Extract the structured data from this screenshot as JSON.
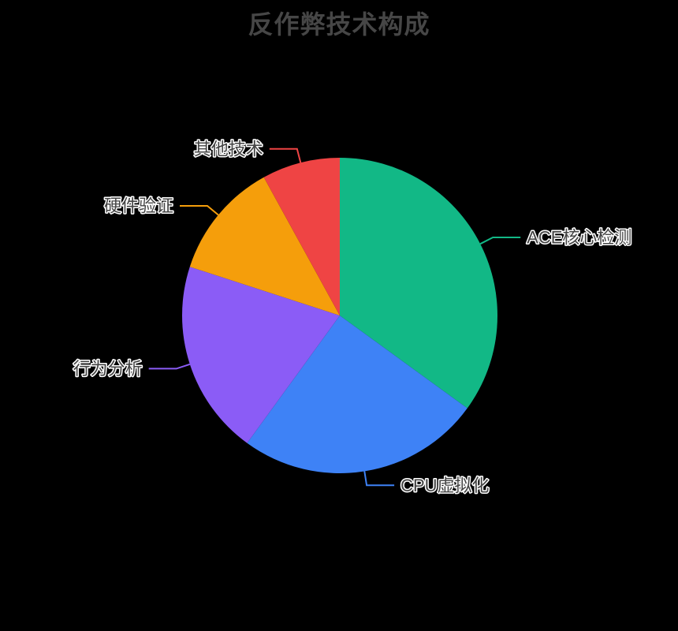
{
  "page": {
    "background_color": "#000000"
  },
  "chart_data": {
    "type": "pie",
    "title": "反作弊技术构成",
    "title_color": "#464646",
    "label_color": "#444444",
    "label_outline_color": "#ffffff",
    "legend_position": "none",
    "start_angle_deg": 90,
    "direction": "clockwise",
    "categories": [
      "ACE核心检测",
      "CPU虚拟化",
      "行为分析",
      "硬件验证",
      "其他技术"
    ],
    "values": [
      35,
      25,
      20,
      12,
      8
    ],
    "series": [
      {
        "name": "ACE核心检测",
        "value": 35,
        "color": "#12b886"
      },
      {
        "name": "CPU虚拟化",
        "value": 25,
        "color": "#3e82f6"
      },
      {
        "name": "行为分析",
        "value": 20,
        "color": "#8b5cf6"
      },
      {
        "name": "硬件验证",
        "value": 12,
        "color": "#f59e0b"
      },
      {
        "name": "其他技术",
        "value": 8,
        "color": "#ef4444"
      }
    ]
  }
}
